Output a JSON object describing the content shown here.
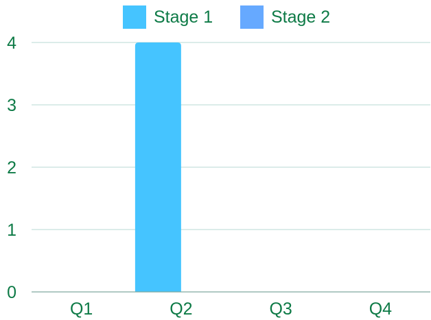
{
  "chart_data": {
    "type": "bar",
    "title": "",
    "xlabel": "",
    "ylabel": "",
    "categories": [
      "Q1",
      "Q2",
      "Q3",
      "Q4"
    ],
    "series": [
      {
        "name": "Stage 1",
        "values": [
          0,
          4,
          0,
          0
        ],
        "color": "#45c4ff"
      },
      {
        "name": "Stage 2",
        "values": [
          0,
          0,
          0,
          0
        ],
        "color": "#66a9ff"
      }
    ],
    "ylim": [
      0,
      4
    ],
    "yticks": [
      0,
      1,
      2,
      3,
      4
    ],
    "grid": true,
    "legend_position": "top-center",
    "text_color": "#0d7a46",
    "grid_color": "#b7d9d3",
    "axis_color": "#7fa99f"
  }
}
